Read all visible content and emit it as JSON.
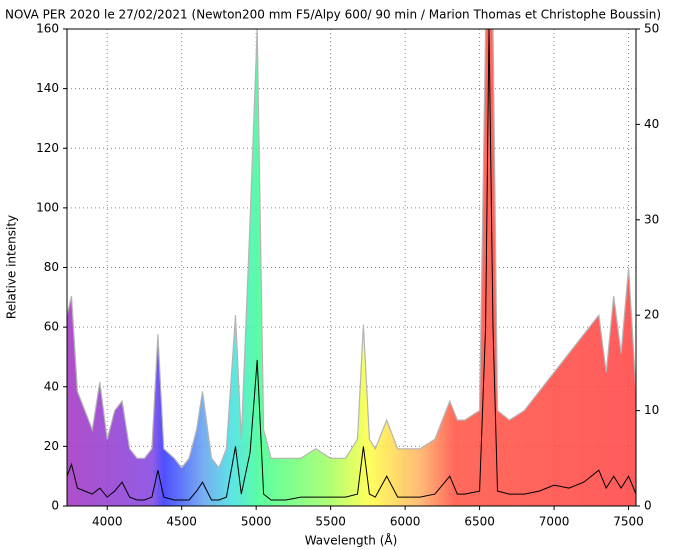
{
  "chart_data": {
    "type": "line",
    "title": "NOVA PER 2020 le 27/02/2021 (Newton200 mm F5/Alpy 600/ 90 min / Marion Thomas et Christophe Boussin)",
    "x_label": "Wavelength (Å)",
    "y_label": "Relative intensity",
    "x": [
      3730,
      3760,
      3800,
      3850,
      3900,
      3950,
      4000,
      4050,
      4100,
      4150,
      4200,
      4250,
      4300,
      4340,
      4380,
      4450,
      4500,
      4550,
      4600,
      4640,
      4700,
      4750,
      4800,
      4861,
      4900,
      4959,
      5007,
      5050,
      5100,
      5200,
      5300,
      5400,
      5500,
      5600,
      5680,
      5720,
      5760,
      5800,
      5876,
      5950,
      6000,
      6100,
      6200,
      6300,
      6350,
      6400,
      6500,
      6540,
      6563,
      6590,
      6620,
      6700,
      6800,
      6900,
      7000,
      7100,
      7200,
      7300,
      7350,
      7400,
      7450,
      7500,
      7550
    ],
    "series": [
      {
        "color": "#b4b4b4",
        "axis": "y2",
        "values": [
          20,
          22,
          12,
          10,
          8,
          13,
          7,
          10,
          11,
          6,
          5,
          5,
          6,
          18,
          6,
          5,
          4,
          5,
          8,
          12,
          5,
          4,
          6,
          20,
          7,
          30,
          50,
          8,
          5,
          5,
          5,
          6,
          5,
          5,
          7,
          19,
          7,
          6,
          9,
          6,
          6,
          6,
          7,
          11,
          9,
          9,
          10,
          50,
          50,
          50,
          10,
          9,
          10,
          12,
          14,
          16,
          18,
          20,
          14,
          22,
          16,
          25,
          12
        ]
      },
      {
        "color": "#000000",
        "values": [
          10,
          14,
          6,
          5,
          4,
          6,
          3,
          5,
          8,
          3,
          2,
          2,
          3,
          12,
          3,
          2,
          2,
          2,
          5,
          8,
          2,
          2,
          3,
          20,
          4,
          18,
          49,
          4,
          2,
          2,
          3,
          3,
          3,
          3,
          4,
          20,
          4,
          3,
          10,
          3,
          3,
          3,
          4,
          10,
          4,
          4,
          5,
          60,
          160,
          60,
          5,
          4,
          4,
          5,
          7,
          6,
          8,
          12,
          6,
          10,
          6,
          10,
          4
        ]
      }
    ],
    "xlim": [
      3730,
      7550
    ],
    "xticks": [
      4000,
      4500,
      5000,
      5500,
      6000,
      6500,
      7000,
      7500
    ],
    "ylim": [
      0,
      160
    ],
    "yticks": [
      0,
      20,
      40,
      60,
      80,
      100,
      120,
      140,
      160
    ],
    "y2lim": [
      0,
      50
    ],
    "y2ticks": [
      0,
      10,
      20,
      30,
      40,
      50
    ],
    "grid": true
  }
}
